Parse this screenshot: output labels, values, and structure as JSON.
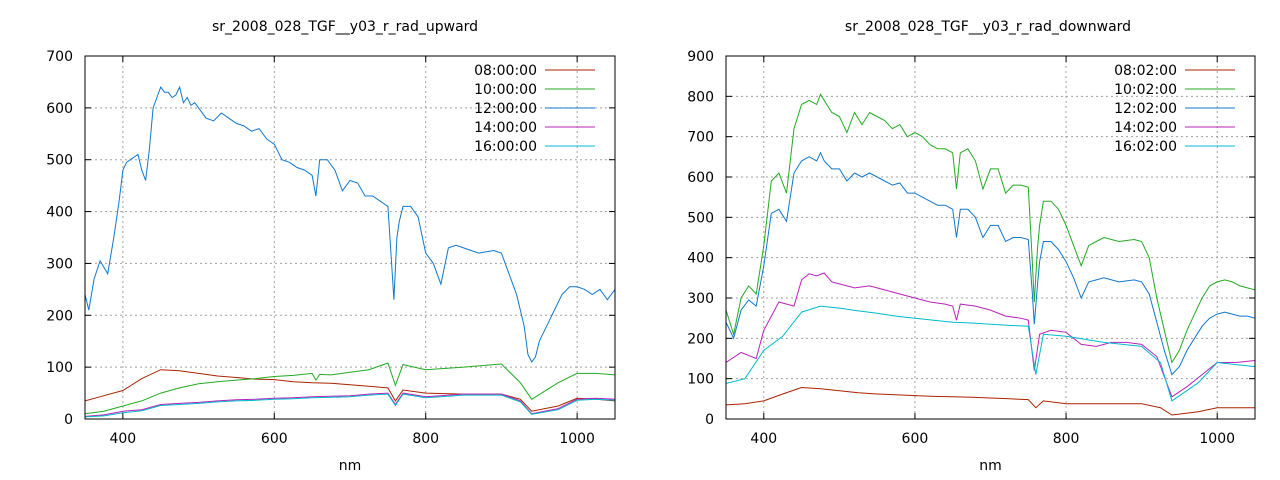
{
  "chart_data": [
    {
      "type": "line",
      "title": "sr_2008_028_TGF__y03_r_rad_upward",
      "xlabel": "nm",
      "ylabel": "",
      "xlim": [
        350,
        1050
      ],
      "ylim": [
        0,
        700
      ],
      "xticks": [
        400,
        600,
        800,
        1000
      ],
      "yticks": [
        0,
        100,
        200,
        300,
        400,
        500,
        600,
        700
      ],
      "grid": true,
      "legend": "top-right",
      "series": [
        {
          "name": "08:00:00",
          "color": "#aa2200",
          "x": [
            350,
            375,
            400,
            425,
            450,
            475,
            500,
            525,
            550,
            575,
            600,
            625,
            650,
            675,
            700,
            725,
            750,
            760,
            770,
            800,
            850,
            900,
            925,
            940,
            975,
            1000,
            1025,
            1050
          ],
          "y": [
            35,
            45,
            55,
            78,
            95,
            93,
            88,
            83,
            80,
            77,
            76,
            72,
            70,
            69,
            66,
            63,
            60,
            35,
            56,
            50,
            48,
            48,
            38,
            15,
            25,
            40,
            38,
            35
          ]
        },
        {
          "name": "10:00:00",
          "color": "#22aa22",
          "x": [
            350,
            375,
            400,
            425,
            450,
            475,
            500,
            525,
            550,
            575,
            600,
            625,
            650,
            655,
            660,
            675,
            700,
            725,
            750,
            760,
            770,
            800,
            850,
            900,
            925,
            940,
            975,
            1000,
            1025,
            1050
          ],
          "y": [
            10,
            15,
            25,
            35,
            50,
            60,
            68,
            72,
            75,
            78,
            82,
            84,
            88,
            75,
            86,
            85,
            90,
            95,
            108,
            65,
            105,
            95,
            100,
            106,
            70,
            38,
            70,
            88,
            88,
            85
          ]
        },
        {
          "name": "12:00:00",
          "color": "#1177cc",
          "x": [
            350,
            355,
            362,
            370,
            380,
            388,
            395,
            400,
            405,
            410,
            420,
            425,
            430,
            435,
            440,
            445,
            450,
            455,
            460,
            465,
            470,
            475,
            480,
            485,
            490,
            495,
            500,
            510,
            520,
            530,
            540,
            550,
            560,
            570,
            580,
            590,
            600,
            610,
            620,
            630,
            640,
            650,
            655,
            660,
            670,
            680,
            690,
            700,
            710,
            720,
            730,
            740,
            750,
            755,
            758,
            762,
            765,
            770,
            780,
            790,
            800,
            810,
            820,
            830,
            840,
            850,
            870,
            890,
            900,
            910,
            920,
            930,
            935,
            940,
            945,
            950,
            960,
            970,
            980,
            990,
            1000,
            1010,
            1020,
            1030,
            1040,
            1050
          ],
          "y": [
            240,
            210,
            270,
            305,
            280,
            350,
            420,
            480,
            495,
            500,
            510,
            480,
            460,
            520,
            600,
            620,
            640,
            630,
            630,
            620,
            625,
            640,
            610,
            620,
            605,
            610,
            600,
            580,
            575,
            590,
            580,
            570,
            565,
            555,
            560,
            540,
            530,
            500,
            495,
            485,
            480,
            470,
            430,
            500,
            500,
            480,
            440,
            460,
            455,
            430,
            430,
            420,
            410,
            300,
            230,
            350,
            380,
            410,
            410,
            390,
            320,
            300,
            260,
            330,
            335,
            330,
            320,
            325,
            320,
            280,
            240,
            180,
            125,
            110,
            120,
            150,
            180,
            210,
            240,
            255,
            255,
            250,
            240,
            250,
            230,
            250
          ]
        },
        {
          "name": "14:00:00",
          "color": "#bb22bb",
          "x": [
            350,
            375,
            400,
            425,
            450,
            475,
            500,
            525,
            550,
            575,
            600,
            625,
            650,
            675,
            700,
            725,
            750,
            760,
            770,
            800,
            850,
            900,
            925,
            940,
            975,
            1000,
            1025,
            1050
          ],
          "y": [
            5,
            8,
            15,
            18,
            28,
            30,
            32,
            35,
            37,
            38,
            40,
            41,
            43,
            44,
            45,
            48,
            50,
            28,
            50,
            43,
            48,
            48,
            35,
            10,
            20,
            38,
            40,
            38
          ]
        },
        {
          "name": "16:00:00",
          "color": "#00bbcc",
          "x": [
            350,
            375,
            400,
            425,
            450,
            475,
            500,
            525,
            550,
            575,
            600,
            625,
            650,
            675,
            700,
            725,
            750,
            760,
            770,
            800,
            850,
            900,
            925,
            940,
            975,
            1000,
            1025,
            1050
          ],
          "y": [
            4,
            6,
            12,
            16,
            26,
            28,
            30,
            33,
            35,
            36,
            38,
            39,
            41,
            42,
            43,
            46,
            48,
            26,
            48,
            41,
            46,
            46,
            33,
            9,
            18,
            36,
            38,
            36
          ]
        }
      ]
    },
    {
      "type": "line",
      "title": "sr_2008_028_TGF__y03_r_rad_downward",
      "xlabel": "nm",
      "ylabel": "",
      "xlim": [
        350,
        1050
      ],
      "ylim": [
        0,
        900
      ],
      "xticks": [
        400,
        600,
        800,
        1000
      ],
      "yticks": [
        0,
        100,
        200,
        300,
        400,
        500,
        600,
        700,
        800,
        900
      ],
      "grid": true,
      "legend": "top-right",
      "series": [
        {
          "name": "08:02:00",
          "color": "#aa2200",
          "x": [
            350,
            375,
            400,
            425,
            450,
            475,
            500,
            525,
            550,
            575,
            600,
            625,
            650,
            675,
            700,
            725,
            750,
            760,
            770,
            800,
            850,
            900,
            925,
            940,
            975,
            1000,
            1025,
            1050
          ],
          "y": [
            35,
            38,
            45,
            62,
            78,
            75,
            70,
            65,
            62,
            60,
            58,
            56,
            55,
            54,
            52,
            50,
            48,
            28,
            45,
            38,
            38,
            38,
            28,
            10,
            18,
            28,
            28,
            28
          ]
        },
        {
          "name": "10:02:00",
          "color": "#22aa22",
          "x": [
            350,
            360,
            370,
            380,
            390,
            400,
            410,
            420,
            430,
            440,
            450,
            460,
            470,
            475,
            480,
            490,
            500,
            510,
            520,
            530,
            540,
            550,
            560,
            570,
            580,
            590,
            600,
            610,
            620,
            630,
            640,
            650,
            655,
            660,
            670,
            680,
            690,
            700,
            710,
            720,
            730,
            740,
            750,
            755,
            758,
            762,
            765,
            770,
            780,
            790,
            800,
            810,
            820,
            830,
            840,
            850,
            870,
            890,
            900,
            910,
            920,
            930,
            940,
            950,
            960,
            970,
            980,
            990,
            1000,
            1010,
            1020,
            1030,
            1040,
            1050
          ],
          "y": [
            270,
            210,
            300,
            330,
            310,
            430,
            590,
            610,
            560,
            720,
            780,
            790,
            780,
            805,
            790,
            760,
            750,
            710,
            760,
            730,
            760,
            750,
            740,
            720,
            730,
            700,
            710,
            700,
            680,
            670,
            670,
            660,
            570,
            660,
            670,
            640,
            570,
            620,
            620,
            560,
            580,
            580,
            575,
            400,
            290,
            420,
            480,
            540,
            540,
            520,
            480,
            430,
            380,
            430,
            440,
            450,
            440,
            445,
            440,
            400,
            300,
            220,
            140,
            170,
            220,
            260,
            300,
            330,
            340,
            345,
            340,
            330,
            325,
            320
          ]
        },
        {
          "name": "12:02:00",
          "color": "#1177cc",
          "x": [
            350,
            360,
            370,
            380,
            390,
            400,
            410,
            420,
            430,
            440,
            450,
            460,
            470,
            475,
            480,
            490,
            500,
            510,
            520,
            530,
            540,
            550,
            560,
            570,
            580,
            590,
            600,
            610,
            620,
            630,
            640,
            650,
            655,
            660,
            670,
            680,
            690,
            700,
            710,
            720,
            730,
            740,
            750,
            755,
            758,
            762,
            765,
            770,
            780,
            790,
            800,
            810,
            820,
            830,
            840,
            850,
            870,
            890,
            900,
            910,
            920,
            930,
            940,
            950,
            960,
            970,
            980,
            990,
            1000,
            1010,
            1020,
            1030,
            1040,
            1050
          ],
          "y": [
            240,
            200,
            270,
            295,
            280,
            380,
            510,
            520,
            490,
            610,
            640,
            650,
            640,
            660,
            640,
            620,
            620,
            590,
            610,
            600,
            610,
            600,
            590,
            580,
            585,
            560,
            560,
            550,
            540,
            530,
            530,
            520,
            450,
            520,
            520,
            500,
            450,
            480,
            480,
            440,
            450,
            450,
            445,
            320,
            235,
            330,
            390,
            440,
            440,
            420,
            390,
            350,
            300,
            340,
            345,
            350,
            340,
            345,
            340,
            310,
            240,
            170,
            110,
            130,
            170,
            200,
            230,
            250,
            260,
            265,
            260,
            255,
            255,
            250
          ]
        },
        {
          "name": "14:02:00",
          "color": "#bb22bb",
          "x": [
            350,
            370,
            390,
            400,
            420,
            440,
            450,
            460,
            470,
            480,
            490,
            500,
            520,
            540,
            560,
            580,
            600,
            620,
            640,
            650,
            655,
            660,
            680,
            700,
            720,
            740,
            750,
            758,
            765,
            780,
            800,
            820,
            840,
            860,
            880,
            900,
            920,
            940,
            960,
            980,
            1000,
            1025,
            1050
          ],
          "y": [
            140,
            165,
            150,
            220,
            290,
            280,
            345,
            360,
            355,
            362,
            340,
            335,
            325,
            330,
            320,
            310,
            300,
            290,
            285,
            280,
            245,
            285,
            280,
            270,
            255,
            250,
            245,
            120,
            210,
            220,
            215,
            185,
            180,
            190,
            190,
            185,
            155,
            55,
            80,
            110,
            140,
            140,
            145
          ]
        },
        {
          "name": "16:02:00",
          "color": "#00bbcc",
          "x": [
            350,
            375,
            400,
            425,
            450,
            475,
            500,
            525,
            550,
            575,
            600,
            625,
            650,
            675,
            700,
            725,
            750,
            760,
            770,
            800,
            850,
            900,
            925,
            940,
            975,
            1000,
            1025,
            1050
          ],
          "y": [
            88,
            100,
            170,
            205,
            265,
            280,
            275,
            268,
            262,
            255,
            250,
            245,
            240,
            238,
            235,
            232,
            230,
            110,
            210,
            205,
            190,
            180,
            140,
            45,
            90,
            140,
            135,
            130
          ]
        }
      ]
    }
  ]
}
